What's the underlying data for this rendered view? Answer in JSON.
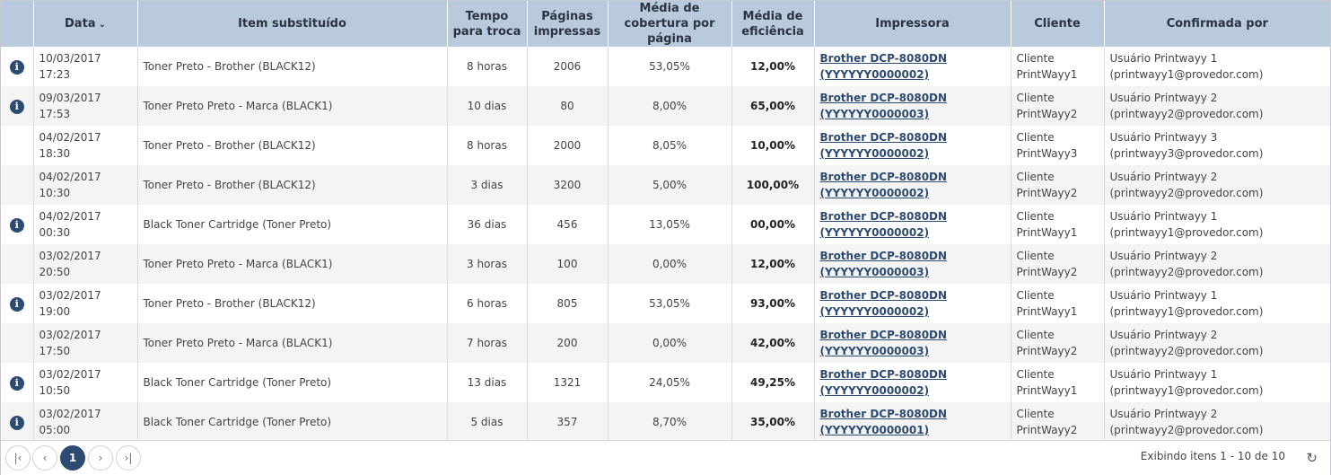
{
  "columns": {
    "date": "Data",
    "item": "Item substituído",
    "time": "Tempo para troca",
    "pages": "Páginas impressas",
    "coverage": "Média de cobertura por página",
    "efficiency": "Média de eficiência",
    "printer": "Impressora",
    "client": "Cliente",
    "confirmed": "Confirmada por"
  },
  "sort_icon": "chevron-down-icon",
  "rows": [
    {
      "info": true,
      "date": "10/03/2017 17:23",
      "item": "Toner Preto - Brother (BLACK12)",
      "time": "8 horas",
      "pages": "2006",
      "coverage": "53,05%",
      "efficiency": "12,00%",
      "printer": "Brother DCP-8080DN (YYYYYY0000002)",
      "client": "Cliente PrintWayy1",
      "confirmed": "Usuário Printwayy 1 (printwayy1@provedor.com)"
    },
    {
      "info": true,
      "date": "09/03/2017 17:53",
      "item": "Toner Preto Preto - Marca (BLACK1)",
      "time": "10 dias",
      "pages": "80",
      "coverage": "8,00%",
      "efficiency": "65,00%",
      "printer": "Brother DCP-8080DN (YYYYYY0000003)",
      "client": "Cliente PrintWayy2",
      "confirmed": "Usuário Printwayy 2 (printwayy2@provedor.com)"
    },
    {
      "info": false,
      "date": "04/02/2017 18:30",
      "item": "Toner Preto - Brother (BLACK12)",
      "time": "8 horas",
      "pages": "2000",
      "coverage": "8,05%",
      "efficiency": "10,00%",
      "printer": "Brother DCP-8080DN (YYYYYY0000002)",
      "client": "Cliente PrintWayy3",
      "confirmed": "Usuário Printwayy 3 (printwayy3@provedor.com)"
    },
    {
      "info": false,
      "date": "04/02/2017 10:30",
      "item": "Toner Preto - Brother (BLACK12)",
      "time": "3 dias",
      "pages": "3200",
      "coverage": "5,00%",
      "efficiency": "100,00%",
      "printer": "Brother DCP-8080DN (YYYYYY0000002)",
      "client": "Cliente PrintWayy2",
      "confirmed": "Usuário Printwayy 2 (printwayy2@provedor.com)"
    },
    {
      "info": true,
      "date": "04/02/2017 00:30",
      "item": "Black Toner Cartridge (Toner Preto)",
      "time": "36 dias",
      "pages": "456",
      "coverage": "13,05%",
      "efficiency": "00,00%",
      "printer": "Brother DCP-8080DN (YYYYYY0000002)",
      "client": "Cliente PrintWayy1",
      "confirmed": "Usuário Printwayy 1 (printwayy1@provedor.com)"
    },
    {
      "info": false,
      "date": "03/02/2017 20:50",
      "item": "Toner Preto Preto - Marca (BLACK1)",
      "time": "3 horas",
      "pages": "100",
      "coverage": "0,00%",
      "efficiency": "12,00%",
      "printer": "Brother DCP-8080DN (YYYYYY0000003)",
      "client": "Cliente PrintWayy2",
      "confirmed": "Usuário Printwayy 2 (printwayy2@provedor.com)"
    },
    {
      "info": true,
      "date": "03/02/2017 19:00",
      "item": "Toner Preto - Brother (BLACK12)",
      "time": "6 horas",
      "pages": "805",
      "coverage": "53,05%",
      "efficiency": "93,00%",
      "printer": "Brother DCP-8080DN (YYYYYY0000002)",
      "client": "Cliente PrintWayy1",
      "confirmed": "Usuário Printwayy 1 (printwayy1@provedor.com)"
    },
    {
      "info": false,
      "date": "03/02/2017 17:50",
      "item": "Toner Preto Preto - Marca (BLACK1)",
      "time": "7 horas",
      "pages": "200",
      "coverage": "0,00%",
      "efficiency": "42,00%",
      "printer": "Brother DCP-8080DN (YYYYYY0000003)",
      "client": "Cliente PrintWayy2",
      "confirmed": "Usuário Printwayy 2 (printwayy2@provedor.com)"
    },
    {
      "info": true,
      "date": "03/02/2017 10:50",
      "item": "Black Toner Cartridge (Toner Preto)",
      "time": "13 dias",
      "pages": "1321",
      "coverage": "24,05%",
      "efficiency": "49,25%",
      "printer": "Brother DCP-8080DN (YYYYYY0000002)",
      "client": "Cliente PrintWayy1",
      "confirmed": "Usuário Printwayy 1 (printwayy1@provedor.com)"
    },
    {
      "info": true,
      "date": "03/02/2017 05:00",
      "item": "Black Toner Cartridge (Toner Preto)",
      "time": "5 dias",
      "pages": "357",
      "coverage": "8,70%",
      "efficiency": "35,00%",
      "printer": "Brother DCP-8080DN (YYYYYY0000001)",
      "client": "Cliente PrintWayy2",
      "confirmed": "Usuário Printwayy 2 (printwayy2@provedor.com)"
    }
  ],
  "info_icon": "info-icon",
  "pager": {
    "first_icon": "first-page-icon",
    "prev_icon": "chevron-left-icon",
    "current_page": "1",
    "next_icon": "chevron-right-icon",
    "last_icon": "last-page-icon",
    "summary": "Exibindo itens 1 - 10 de 10",
    "refresh_icon": "refresh-icon"
  },
  "colors": {
    "header_bg": "#b8cadc",
    "accent": "#2d4b72",
    "row_alt": "#f4f4f4"
  }
}
